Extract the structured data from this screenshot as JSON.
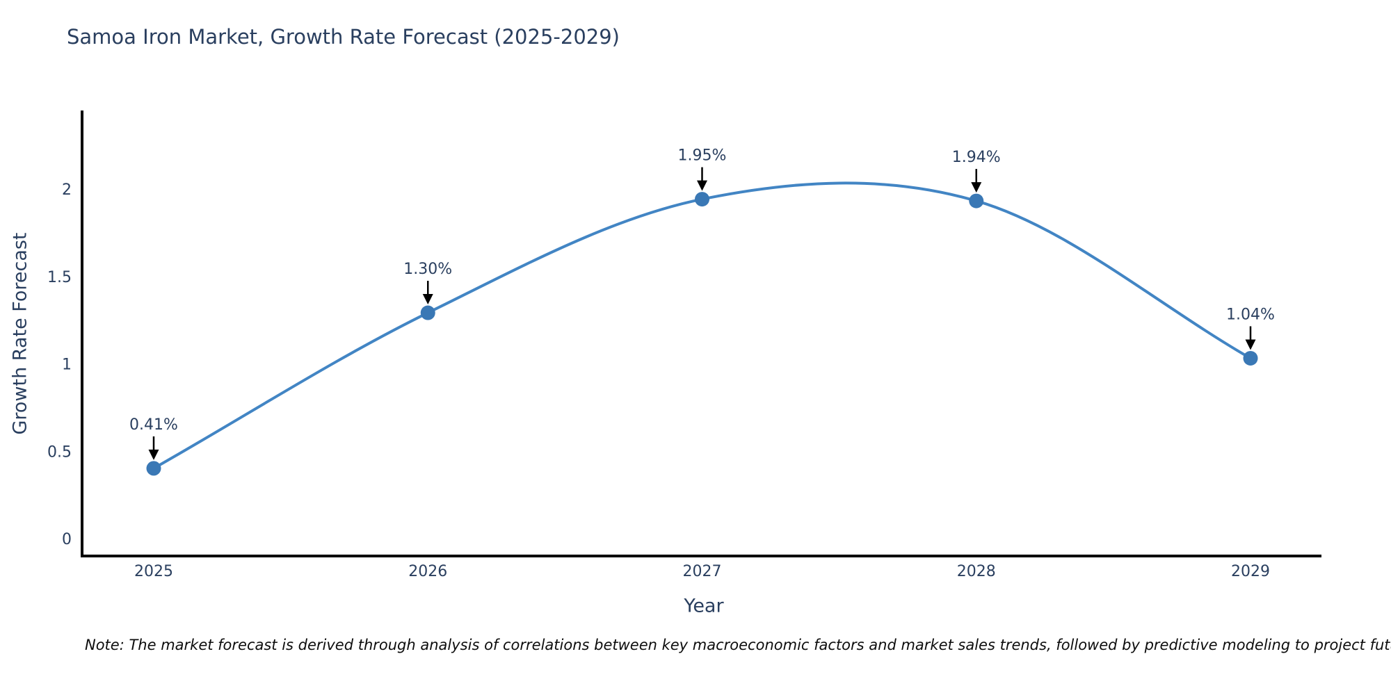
{
  "title": "Samoa Iron Market, Growth Rate Forecast (2025-2029)",
  "note": "Note: The market forecast is derived through analysis of correlations between key macroeconomic factors and market sales trends, followed by predictive modeling to project future sales",
  "chart_data": {
    "type": "line",
    "line_shape": "spline",
    "x": [
      2025,
      2026,
      2027,
      2028,
      2029
    ],
    "series": [
      {
        "name": "Growth Rate Forecast",
        "values": [
          0.41,
          1.3,
          1.95,
          1.94,
          1.04
        ]
      }
    ],
    "point_labels": [
      "0.41%",
      "1.30%",
      "1.95%",
      "1.94%",
      "1.04%"
    ],
    "xlabel": "Year",
    "ylabel": "Growth Rate Forecast",
    "xtick_labels": [
      "2025",
      "2026",
      "2027",
      "2028",
      "2029"
    ],
    "ytick_values": [
      0,
      0.5,
      1,
      1.5,
      2
    ],
    "ytick_labels": [
      "0",
      "0.5",
      "1",
      "1.5",
      "2"
    ],
    "ylim": [
      0,
      2.46
    ],
    "grid": false,
    "legend_position": "none",
    "colors": {
      "line": "#4285c4",
      "marker": "#3a78b5",
      "axis": "#000000",
      "text": "#2a3f5f",
      "annotation_arrow": "#000000",
      "background": "#ffffff"
    }
  }
}
